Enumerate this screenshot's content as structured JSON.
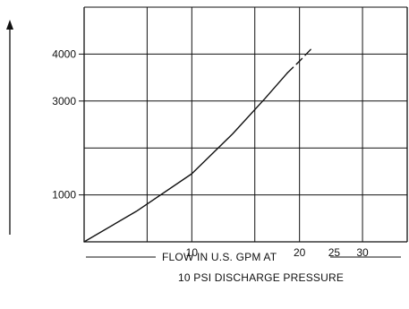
{
  "chart_data": {
    "type": "line",
    "x_scale": "log",
    "xlim": [
      5,
      40
    ],
    "ylim": [
      0,
      5000
    ],
    "grid": true,
    "x_ticks": [
      {
        "value": 10,
        "label": "10"
      },
      {
        "value": 20,
        "label": "20"
      },
      {
        "value": 25,
        "label": "25"
      },
      {
        "value": 30,
        "label": "30"
      }
    ],
    "x_grid": [
      7.5,
      10,
      15,
      20,
      30
    ],
    "y_ticks": [
      {
        "value": 1000,
        "label": "1000"
      },
      {
        "value": 3000,
        "label": "3000"
      },
      {
        "value": 4000,
        "label": "4000"
      }
    ],
    "y_grid": [
      1000,
      2000,
      3000,
      4000,
      5000
    ],
    "xlabel_line1": "FLOW IN U.S. GPM AT",
    "xlabel_line2": "10 PSI DISCHARGE PRESSURE",
    "series": [
      {
        "style": "solid",
        "points": [
          [
            5,
            0
          ],
          [
            7,
            650
          ],
          [
            10,
            1450
          ],
          [
            13,
            2300
          ],
          [
            16,
            3050
          ],
          [
            18.5,
            3600
          ]
        ]
      },
      {
        "style": "dashed",
        "points": [
          [
            18.5,
            3600
          ],
          [
            20,
            3850
          ],
          [
            21.5,
            4100
          ]
        ]
      }
    ]
  }
}
